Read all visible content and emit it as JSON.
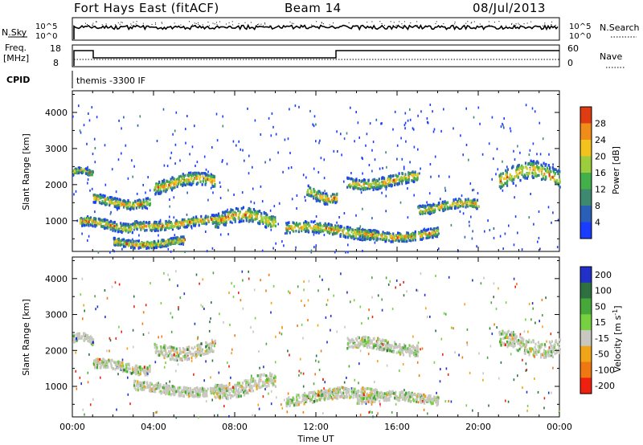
{
  "header": {
    "station": "Fort Hays East (fitACF)",
    "beam": "Beam 14",
    "date": "08/Jul/2013"
  },
  "top_panels": {
    "nsky_label": "N.Sky",
    "nsearch_label": "N.Search",
    "nsky_ticks": [
      "10^5",
      "10^0"
    ],
    "nsearch_ticks": [
      "10^5",
      "10^0"
    ],
    "freq_label_line1": "Freq.",
    "freq_label_line2": "[MHz]",
    "freq_ticks": [
      "18",
      "8"
    ],
    "nave_label": "Nave",
    "nave_ticks": [
      "60",
      "0"
    ],
    "cpid_label": "CPID",
    "cpid_text": "themis -3300 IF"
  },
  "chart_data": [
    {
      "type": "heatmap",
      "name": "power",
      "ylabel": "Slant Range [km]",
      "xlabel": "Time UT",
      "x_ticks": [
        "00:00",
        "04:00",
        "08:00",
        "12:00",
        "16:00",
        "20:00",
        "00:00"
      ],
      "y_ticks": [
        1000,
        2000,
        3000,
        4000
      ],
      "ylim": [
        150,
        4600
      ],
      "xlim_hours": [
        0,
        24
      ],
      "colorbar_label": "Power [dB]",
      "colorbar_ticks": [
        4,
        8,
        12,
        16,
        20,
        24,
        28
      ],
      "colorbar_range": [
        0,
        32
      ],
      "colors": [
        "#1a3cff",
        "#2a5fb8",
        "#3d8a70",
        "#43b04a",
        "#9ccd3c",
        "#f3c21c",
        "#f08c18",
        "#e03c14"
      ],
      "bands": [
        {
          "t0": 0.0,
          "t1": 1.0,
          "r0": 2300,
          "r1": 2450
        },
        {
          "t0": 0.3,
          "t1": 3.0,
          "r0": 800,
          "r1": 1050
        },
        {
          "t0": 1.0,
          "t1": 3.8,
          "r0": 1450,
          "r1": 1700
        },
        {
          "t0": 2.0,
          "t1": 5.5,
          "r0": 350,
          "r1": 550
        },
        {
          "t0": 3.0,
          "t1": 7.5,
          "r0": 850,
          "r1": 1100
        },
        {
          "t0": 4.0,
          "t1": 7.0,
          "r0": 1900,
          "r1": 2250
        },
        {
          "t0": 7.0,
          "t1": 10.0,
          "r0": 850,
          "r1": 1250
        },
        {
          "t0": 10.5,
          "t1": 15.0,
          "r0": 600,
          "r1": 900
        },
        {
          "t0": 11.5,
          "t1": 13.0,
          "r0": 1600,
          "r1": 1900
        },
        {
          "t0": 14.0,
          "t1": 18.0,
          "r0": 550,
          "r1": 800
        },
        {
          "t0": 13.5,
          "t1": 17.0,
          "r0": 2000,
          "r1": 2300
        },
        {
          "t0": 17.0,
          "t1": 20.0,
          "r0": 1300,
          "r1": 1550
        },
        {
          "t0": 21.0,
          "t1": 24.0,
          "r0": 2000,
          "r1": 2500
        }
      ]
    },
    {
      "type": "heatmap",
      "name": "velocity",
      "ylabel": "Slant Range [km]",
      "xlabel": "Time UT",
      "x_ticks": [
        "00:00",
        "04:00",
        "08:00",
        "12:00",
        "16:00",
        "20:00",
        "00:00"
      ],
      "y_ticks": [
        1000,
        2000,
        3000,
        4000
      ],
      "ylim": [
        150,
        4600
      ],
      "xlim_hours": [
        0,
        24
      ],
      "colorbar_label": "Velocity [m s^-1]",
      "colorbar_ticks": [
        200,
        100,
        50,
        15,
        -15,
        -50,
        -100,
        -200
      ],
      "colors": [
        "#2030c8",
        "#2e7040",
        "#46a838",
        "#76d040",
        "#c8c8c0",
        "#f0a418",
        "#f07810",
        "#f02010"
      ],
      "bands": [
        {
          "t0": 0.0,
          "t1": 1.0,
          "r0": 2250,
          "r1": 2450
        },
        {
          "t0": 1.0,
          "t1": 3.8,
          "r0": 1450,
          "r1": 1700
        },
        {
          "t0": 3.0,
          "t1": 7.5,
          "r0": 850,
          "r1": 1100
        },
        {
          "t0": 4.0,
          "t1": 7.0,
          "r0": 1900,
          "r1": 2250
        },
        {
          "t0": 7.0,
          "t1": 10.0,
          "r0": 850,
          "r1": 1250
        },
        {
          "t0": 10.5,
          "t1": 15.0,
          "r0": 600,
          "r1": 900
        },
        {
          "t0": 14.0,
          "t1": 18.0,
          "r0": 550,
          "r1": 800
        },
        {
          "t0": 13.5,
          "t1": 17.0,
          "r0": 2000,
          "r1": 2300
        },
        {
          "t0": 21.0,
          "t1": 24.0,
          "r0": 2000,
          "r1": 2450
        }
      ]
    }
  ]
}
